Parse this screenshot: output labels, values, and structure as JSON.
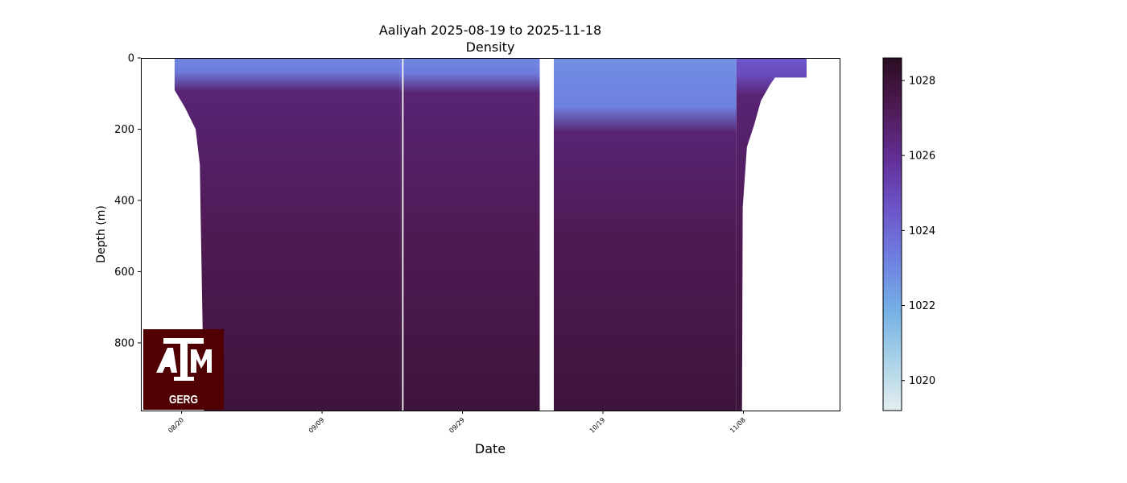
{
  "chart_data": {
    "type": "heatmap",
    "title": "Aaliyah 2025-08-19 to 2025-11-18",
    "subtitle": "Density",
    "xlabel": "Date",
    "ylabel": "Depth (m)",
    "x_ticks": [
      "08/20",
      "09/09",
      "09/29",
      "10/19",
      "11/08"
    ],
    "x_tick_days": [
      1,
      21,
      41,
      61,
      81
    ],
    "x_range_days": [
      -4.8,
      94.7
    ],
    "y_ticks": [
      0,
      200,
      400,
      600,
      800
    ],
    "ylim": [
      0,
      990
    ],
    "y_inverted": true,
    "colorbar": {
      "ticks": [
        1020,
        1022,
        1024,
        1026,
        1028
      ],
      "range": [
        1019.2,
        1028.6
      ],
      "colormap": [
        "#e4efef",
        "#a9d2e8",
        "#74b0e6",
        "#6f80e0",
        "#6c55c9",
        "#622f96",
        "#4f1a54",
        "#2a0d22"
      ]
    },
    "surface_layer": {
      "sections": [
        {
          "day_start": 0,
          "day_end": 32,
          "depth_m": 45,
          "density": 1023.0
        },
        {
          "day_start": 32,
          "day_end": 52,
          "depth_m": 50,
          "density": 1023.0
        },
        {
          "day_start": 54,
          "day_end": 80,
          "depth_m": 160,
          "density": 1022.8
        },
        {
          "day_start": 80,
          "day_end": 90,
          "depth_m": 55,
          "density": 1024.5
        }
      ],
      "deep_density_top": 1026.6,
      "deep_density_bottom": 1027.9
    },
    "data_profile": [
      {
        "day": -0.5,
        "max_depth_m": 0
      },
      {
        "day": 0,
        "max_depth_m": 90
      },
      {
        "day": 1.5,
        "max_depth_m": 140
      },
      {
        "day": 3.0,
        "max_depth_m": 200
      },
      {
        "day": 3.6,
        "max_depth_m": 300
      },
      {
        "day": 3.7,
        "max_depth_m": 430
      },
      {
        "day": 4.2,
        "max_depth_m": 990
      },
      {
        "day": 80.8,
        "max_depth_m": 990
      },
      {
        "day": 80.9,
        "max_depth_m": 420
      },
      {
        "day": 81.5,
        "max_depth_m": 250
      },
      {
        "day": 82.5,
        "max_depth_m": 190
      },
      {
        "day": 83.5,
        "max_depth_m": 120
      },
      {
        "day": 84.8,
        "max_depth_m": 75
      },
      {
        "day": 85.5,
        "max_depth_m": 55
      },
      {
        "day": 90.0,
        "max_depth_m": 55
      },
      {
        "day": 90.0,
        "max_depth_m": 0
      }
    ],
    "gaps_days": [
      [
        32.4,
        32.6
      ],
      [
        52.0,
        53.5
      ]
    ],
    "grid": false
  },
  "logo": {
    "text": "GERG",
    "bg_color": "#500000",
    "fg_color": "#ffffff"
  }
}
